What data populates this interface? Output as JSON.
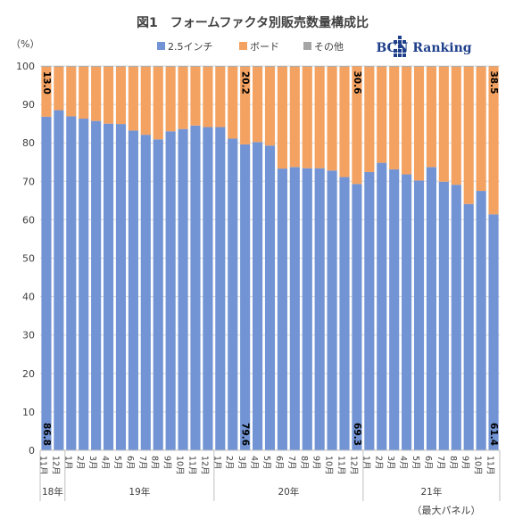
{
  "chart_data": {
    "type": "bar",
    "stacked": true,
    "title": "図1　フォームファクタ別販売数量構成比",
    "ylabel": "（%）",
    "ylim": [
      0,
      100
    ],
    "yticks": [
      0,
      10,
      20,
      30,
      40,
      50,
      60,
      70,
      80,
      90,
      100
    ],
    "note": "（最大パネル）",
    "legend_position": "top",
    "categories": [
      "11月",
      "12月",
      "1月",
      "2月",
      "3月",
      "4月",
      "5月",
      "6月",
      "7月",
      "8月",
      "9月",
      "10月",
      "11月",
      "12月",
      "1月",
      "2月",
      "3月",
      "4月",
      "5月",
      "6月",
      "7月",
      "8月",
      "9月",
      "10月",
      "11月",
      "12月",
      "1月",
      "2月",
      "3月",
      "4月",
      "5月",
      "6月",
      "7月",
      "8月",
      "9月",
      "10月",
      "11月"
    ],
    "years": [
      {
        "label": "18年",
        "start": 0,
        "end": 1
      },
      {
        "label": "19年",
        "start": 2,
        "end": 13
      },
      {
        "label": "20年",
        "start": 14,
        "end": 25
      },
      {
        "label": "21年",
        "start": 26,
        "end": 36
      }
    ],
    "series": [
      {
        "name": "2.5インチ",
        "color": "#7294d4",
        "values": [
          86.8,
          88.5,
          86.9,
          86.3,
          85.7,
          85.0,
          84.9,
          83.2,
          82.1,
          80.9,
          83.0,
          83.6,
          84.5,
          84.1,
          84.1,
          81.1,
          79.6,
          80.2,
          79.3,
          73.3,
          73.7,
          73.4,
          73.4,
          72.8,
          71.1,
          69.3,
          72.4,
          74.8,
          73.1,
          71.8,
          70.2,
          73.7,
          69.9,
          69.1,
          64.1,
          67.5,
          61.4
        ]
      },
      {
        "name": "ボード",
        "color": "#f4a261",
        "values": [
          13.0,
          11.3,
          12.9,
          13.5,
          14.1,
          14.8,
          14.9,
          16.6,
          17.7,
          18.9,
          16.8,
          16.2,
          15.3,
          15.7,
          15.7,
          18.7,
          20.2,
          19.6,
          20.5,
          26.5,
          26.1,
          26.4,
          26.4,
          27.0,
          28.7,
          30.6,
          27.4,
          25.0,
          26.7,
          28.0,
          29.6,
          26.1,
          29.9,
          30.7,
          35.7,
          32.3,
          38.5
        ]
      },
      {
        "name": "その他",
        "color": "#a5a5a5",
        "values": [
          0.2,
          0.2,
          0.2,
          0.2,
          0.2,
          0.2,
          0.2,
          0.2,
          0.2,
          0.2,
          0.2,
          0.2,
          0.2,
          0.2,
          0.2,
          0.2,
          0.2,
          0.2,
          0.2,
          0.2,
          0.2,
          0.2,
          0.2,
          0.2,
          0.2,
          0.1,
          0.2,
          0.2,
          0.2,
          0.2,
          0.2,
          0.2,
          0.2,
          0.2,
          0.2,
          0.2,
          0.1
        ]
      }
    ],
    "data_labels": [
      {
        "index": 0,
        "series": "2.5インチ",
        "text": "86.8"
      },
      {
        "index": 0,
        "series": "ボード",
        "text": "13.0"
      },
      {
        "index": 16,
        "series": "2.5インチ",
        "text": "79.6"
      },
      {
        "index": 16,
        "series": "ボード",
        "text": "20.2"
      },
      {
        "index": 25,
        "series": "2.5インチ",
        "text": "69.3"
      },
      {
        "index": 25,
        "series": "ボード",
        "text": "30.6"
      },
      {
        "index": 36,
        "series": "2.5インチ",
        "text": "61.4"
      },
      {
        "index": 36,
        "series": "ボード",
        "text": "38.5"
      }
    ]
  },
  "logo": {
    "text": "BCN Ranking",
    "icon": "bcn-grid-logo-icon",
    "color": "#1e3f8a"
  }
}
